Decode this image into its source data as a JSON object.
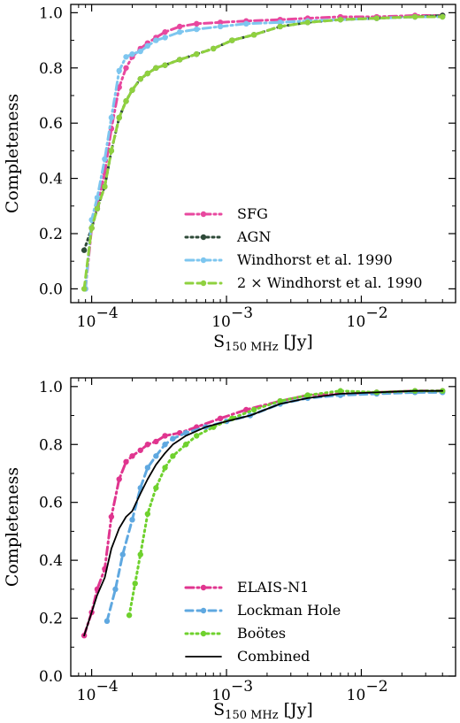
{
  "chart_data": [
    {
      "type": "line",
      "xscale": "log",
      "xlim": [
        7e-05,
        0.05
      ],
      "ylim": [
        -0.05,
        1.03
      ],
      "xlabel": "S150 MHz [Jy]",
      "xlabel_main": "S",
      "xlabel_sub": "150 MHz",
      "xlabel_unit": "[Jy]",
      "ylabel": "Completeness",
      "xticks": [
        0.0001,
        0.001,
        0.01
      ],
      "xtick_base": "10",
      "xtick_exps": [
        "−4",
        "−3",
        "−2"
      ],
      "yticks": [
        "0.0",
        "0.2",
        "0.4",
        "0.6",
        "0.8",
        "1.0"
      ],
      "legend_position": "lower right",
      "series": [
        {
          "name": "SFG",
          "color": "#e8489f",
          "linestyle": "dashdot",
          "marker": "dot",
          "x": [
            9e-05,
            0.0001,
            0.00011,
            0.000125,
            0.00014,
            0.00016,
            0.00018,
            0.0002,
            0.00023,
            0.00026,
            0.0003,
            0.00035,
            0.00045,
            0.0006,
            0.0009,
            0.0014,
            0.0025,
            0.004,
            0.007,
            0.013,
            0.025,
            0.04
          ],
          "y": [
            0.0,
            0.22,
            0.3,
            0.42,
            0.58,
            0.73,
            0.8,
            0.84,
            0.87,
            0.89,
            0.91,
            0.93,
            0.95,
            0.96,
            0.965,
            0.97,
            0.975,
            0.98,
            0.985,
            0.985,
            0.99,
            0.99
          ]
        },
        {
          "name": "AGN",
          "color": "#2e4a38",
          "linestyle": "dotted",
          "marker": "dot",
          "x": [
            8.8e-05,
            0.0001,
            0.00011,
            0.000125,
            0.00014,
            0.00016,
            0.00018,
            0.0002,
            0.00023,
            0.00026,
            0.0003,
            0.00035,
            0.00045,
            0.0006,
            0.0008,
            0.0011,
            0.0016,
            0.0025,
            0.004,
            0.007,
            0.013,
            0.025,
            0.04
          ],
          "y": [
            0.14,
            0.22,
            0.29,
            0.37,
            0.5,
            0.62,
            0.68,
            0.72,
            0.76,
            0.78,
            0.8,
            0.81,
            0.83,
            0.85,
            0.87,
            0.9,
            0.92,
            0.95,
            0.965,
            0.975,
            0.98,
            0.985,
            0.99
          ]
        },
        {
          "name": "Windhorst et al. 1990",
          "color": "#7dc6ef",
          "linestyle": "dashdot",
          "marker": "dot",
          "x": [
            9e-05,
            0.0001,
            0.00011,
            0.000125,
            0.00014,
            0.00016,
            0.00018,
            0.0002,
            0.00023,
            0.00026,
            0.0003,
            0.00035,
            0.00045,
            0.0006,
            0.0009,
            0.0014,
            0.0025,
            0.004,
            0.007,
            0.013,
            0.025,
            0.04
          ],
          "y": [
            0.0,
            0.25,
            0.33,
            0.47,
            0.62,
            0.79,
            0.84,
            0.85,
            0.86,
            0.88,
            0.9,
            0.91,
            0.93,
            0.94,
            0.95,
            0.96,
            0.965,
            0.97,
            0.975,
            0.98,
            0.985,
            0.985
          ]
        },
        {
          "name": "2 × Windhorst et al. 1990",
          "color": "#8fd13f",
          "linestyle": "dashed",
          "marker": "dot",
          "x": [
            8.8e-05,
            0.0001,
            0.00011,
            0.000125,
            0.00014,
            0.00016,
            0.00018,
            0.0002,
            0.00023,
            0.00026,
            0.0003,
            0.00035,
            0.00045,
            0.0006,
            0.0008,
            0.0011,
            0.0016,
            0.0025,
            0.004,
            0.007,
            0.013,
            0.025,
            0.04
          ],
          "y": [
            0.0,
            0.22,
            0.29,
            0.37,
            0.5,
            0.62,
            0.68,
            0.72,
            0.76,
            0.78,
            0.8,
            0.81,
            0.83,
            0.85,
            0.87,
            0.9,
            0.92,
            0.95,
            0.965,
            0.975,
            0.98,
            0.985,
            0.985
          ]
        }
      ]
    },
    {
      "type": "line",
      "xscale": "log",
      "xlim": [
        7e-05,
        0.05
      ],
      "ylim": [
        0.0,
        1.03
      ],
      "xlabel": "S150 MHz [Jy]",
      "xlabel_main": "S",
      "xlabel_sub": "150 MHz",
      "xlabel_unit": "[Jy]",
      "ylabel": "Completeness",
      "xticks": [
        0.0001,
        0.001,
        0.01
      ],
      "xtick_base": "10",
      "xtick_exps": [
        "−4",
        "−3",
        "−2"
      ],
      "yticks": [
        "0.0",
        "0.2",
        "0.4",
        "0.6",
        "0.8",
        "1.0"
      ],
      "legend_position": "lower right",
      "series": [
        {
          "name": "ELAIS-N1",
          "color": "#e0358f",
          "linestyle": "dashdot",
          "marker": "dot",
          "x": [
            8.8e-05,
            0.0001,
            0.00011,
            0.000125,
            0.00014,
            0.00016,
            0.00018,
            0.0002,
            0.00023,
            0.00026,
            0.0003,
            0.00035,
            0.00045,
            0.0006,
            0.0009,
            0.0014,
            0.0025,
            0.004,
            0.007,
            0.013,
            0.025,
            0.04
          ],
          "y": [
            0.14,
            0.22,
            0.3,
            0.37,
            0.55,
            0.68,
            0.74,
            0.76,
            0.78,
            0.8,
            0.81,
            0.83,
            0.84,
            0.86,
            0.89,
            0.92,
            0.95,
            0.97,
            0.975,
            0.98,
            0.985,
            0.985
          ]
        },
        {
          "name": "Lockman Hole",
          "color": "#5fa8e0",
          "linestyle": "dashed",
          "marker": "dot",
          "x": [
            0.00013,
            0.00015,
            0.00017,
            0.0002,
            0.00023,
            0.00026,
            0.0003,
            0.00035,
            0.0004,
            0.0005,
            0.0007,
            0.001,
            0.0015,
            0.0025,
            0.004,
            0.007,
            0.013,
            0.025,
            0.04
          ],
          "y": [
            0.19,
            0.3,
            0.42,
            0.54,
            0.65,
            0.72,
            0.76,
            0.8,
            0.82,
            0.84,
            0.86,
            0.88,
            0.9,
            0.94,
            0.96,
            0.97,
            0.975,
            0.98,
            0.98
          ]
        },
        {
          "name": "Boötes",
          "color": "#6fd12e",
          "linestyle": "dotted",
          "marker": "dot",
          "x": [
            0.00019,
            0.00021,
            0.00023,
            0.00026,
            0.0003,
            0.00035,
            0.0004,
            0.0005,
            0.0006,
            0.0008,
            0.0011,
            0.0016,
            0.0025,
            0.004,
            0.007,
            0.013,
            0.025,
            0.04
          ],
          "y": [
            0.21,
            0.32,
            0.42,
            0.56,
            0.65,
            0.72,
            0.76,
            0.8,
            0.83,
            0.86,
            0.89,
            0.92,
            0.95,
            0.97,
            0.985,
            0.98,
            0.985,
            0.985
          ]
        },
        {
          "name": "Combined",
          "color": "#000000",
          "linestyle": "solid",
          "marker": "none",
          "x": [
            8.8e-05,
            0.0001,
            0.00011,
            0.000125,
            0.00014,
            0.00016,
            0.00018,
            0.0002,
            0.00023,
            0.00026,
            0.0003,
            0.00035,
            0.0004,
            0.0005,
            0.0007,
            0.001,
            0.0015,
            0.0025,
            0.004,
            0.007,
            0.013,
            0.025,
            0.04
          ],
          "y": [
            0.14,
            0.22,
            0.28,
            0.34,
            0.44,
            0.51,
            0.55,
            0.57,
            0.63,
            0.68,
            0.73,
            0.77,
            0.8,
            0.83,
            0.86,
            0.88,
            0.9,
            0.94,
            0.96,
            0.975,
            0.98,
            0.985,
            0.985
          ]
        }
      ]
    }
  ]
}
